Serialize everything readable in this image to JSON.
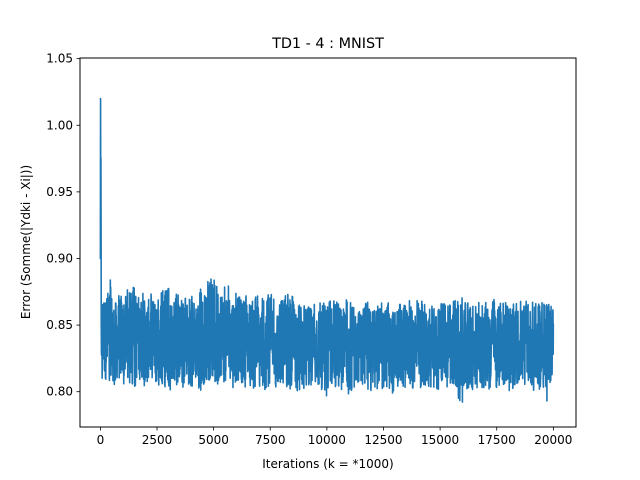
{
  "chart_data": {
    "type": "line",
    "title": "TD1 - 4 : MNIST",
    "xlabel": "Iterations (k = *1000)",
    "ylabel": "Error (Somme(|Ydki - Xi|))",
    "xlim": [
      -900,
      21000
    ],
    "ylim": [
      0.7735,
      1.0505
    ],
    "x_ticks": [
      0,
      2500,
      5000,
      7500,
      10000,
      12500,
      15000,
      17500,
      20000
    ],
    "x_tick_labels": [
      "0",
      "2500",
      "5000",
      "7500",
      "10000",
      "12500",
      "15000",
      "17500",
      "20000"
    ],
    "y_ticks": [
      0.8,
      0.85,
      0.9,
      0.95,
      1.0,
      1.05
    ],
    "y_tick_labels": [
      "0.80",
      "0.85",
      "0.90",
      "0.95",
      "1.00",
      "1.05"
    ],
    "grid": false,
    "legend": "none",
    "series": [
      {
        "color": "#1f77b4",
        "x": [
          0,
          10,
          20,
          30,
          40,
          50,
          60,
          80,
          100,
          150,
          200,
          300,
          400,
          600,
          800,
          1000,
          1300,
          1600,
          2000,
          2500,
          3000,
          3500,
          4000,
          4500,
          4900,
          5000,
          5500,
          6000,
          6500,
          7000,
          7500,
          8000,
          8500,
          9000,
          9500,
          10000,
          10500,
          11000,
          11500,
          12000,
          12500,
          13000,
          13500,
          14000,
          14500,
          15000,
          15500,
          16000,
          16500,
          17000,
          17500,
          18000,
          18500,
          19000,
          19500,
          19700,
          20000
        ],
        "upper": [
          1.038,
          1.036,
          1.03,
          0.96,
          0.905,
          0.88,
          0.872,
          0.876,
          0.878,
          0.88,
          0.876,
          0.872,
          0.889,
          0.872,
          0.874,
          0.876,
          0.878,
          0.88,
          0.874,
          0.876,
          0.878,
          0.872,
          0.874,
          0.878,
          0.886,
          0.891,
          0.88,
          0.878,
          0.874,
          0.872,
          0.874,
          0.87,
          0.876,
          0.868,
          0.87,
          0.872,
          0.868,
          0.87,
          0.866,
          0.868,
          0.87,
          0.866,
          0.868,
          0.87,
          0.866,
          0.866,
          0.868,
          0.872,
          0.866,
          0.868,
          0.87,
          0.866,
          0.868,
          0.868,
          0.87,
          0.866,
          0.87
        ],
        "lower": [
          0.83,
          0.826,
          0.82,
          0.815,
          0.812,
          0.81,
          0.806,
          0.808,
          0.81,
          0.808,
          0.803,
          0.805,
          0.807,
          0.805,
          0.803,
          0.804,
          0.806,
          0.803,
          0.804,
          0.805,
          0.801,
          0.803,
          0.804,
          0.8,
          0.802,
          0.804,
          0.806,
          0.802,
          0.804,
          0.8,
          0.802,
          0.804,
          0.8,
          0.802,
          0.804,
          0.796,
          0.8,
          0.798,
          0.803,
          0.8,
          0.802,
          0.798,
          0.803,
          0.8,
          0.801,
          0.802,
          0.803,
          0.789,
          0.8,
          0.801,
          0.803,
          0.8,
          0.802,
          0.8,
          0.798,
          0.786,
          0.812
        ]
      }
    ]
  }
}
